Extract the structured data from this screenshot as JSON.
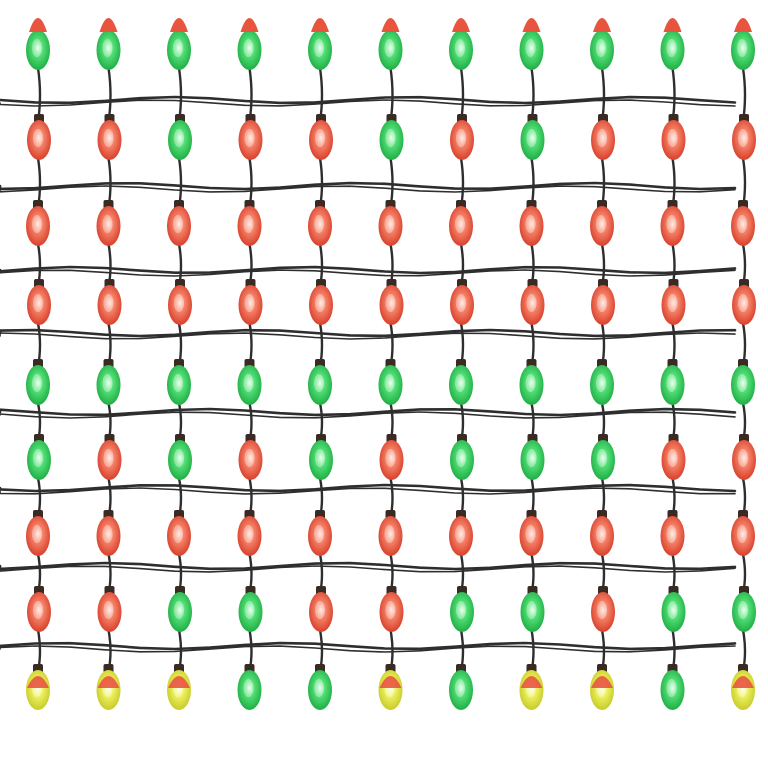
{
  "scene": {
    "subject": "christmas-light-net",
    "background_color": "#ffffff",
    "wire_color": "#2e2e2e",
    "colors": {
      "red": "#e8553f",
      "green": "#2fd15a",
      "yellow": "#e4e84a"
    },
    "rows": [
      [
        "G",
        "G",
        "G",
        "G",
        "G",
        "G",
        "G",
        "G",
        "G",
        "G",
        "G"
      ],
      [
        "R",
        "R",
        "G",
        "R",
        "R",
        "G",
        "R",
        "G",
        "R",
        "R",
        "R"
      ],
      [
        "R",
        "R",
        "R",
        "R",
        "R",
        "R",
        "R",
        "R",
        "R",
        "R",
        "R"
      ],
      [
        "R",
        "R",
        "R",
        "R",
        "R",
        "R",
        "R",
        "R",
        "R",
        "R",
        "R"
      ],
      [
        "G",
        "G",
        "G",
        "G",
        "G",
        "G",
        "G",
        "G",
        "G",
        "G",
        "G"
      ],
      [
        "G",
        "R",
        "G",
        "R",
        "G",
        "R",
        "G",
        "G",
        "G",
        "R",
        "R"
      ],
      [
        "R",
        "R",
        "R",
        "R",
        "R",
        "R",
        "R",
        "R",
        "R",
        "R",
        "R"
      ],
      [
        "R",
        "R",
        "G",
        "G",
        "R",
        "R",
        "G",
        "G",
        "R",
        "G",
        "G"
      ],
      [
        "Y",
        "Y",
        "Y",
        "G",
        "G",
        "Y",
        "G",
        "Y",
        "Y",
        "G",
        "Y"
      ]
    ]
  }
}
